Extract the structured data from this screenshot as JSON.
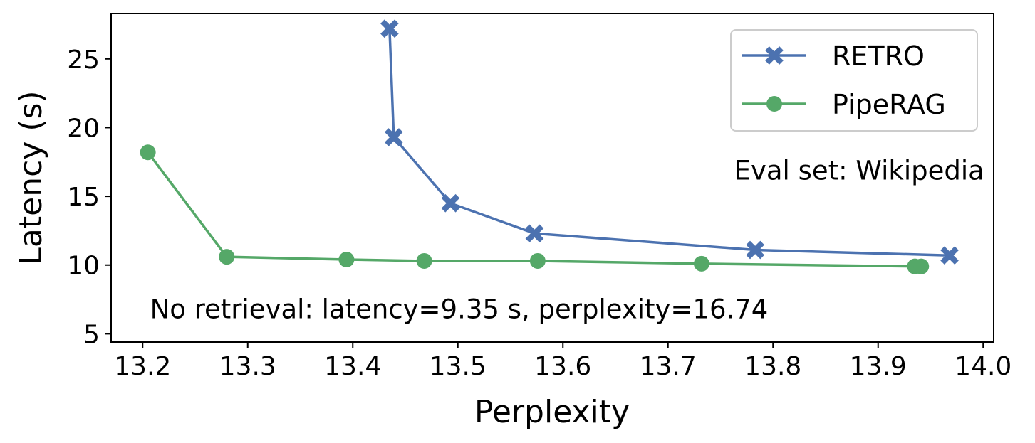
{
  "chart_data": {
    "type": "line",
    "xlabel": "Perplexity",
    "ylabel": "Latency (s)",
    "xlim": [
      13.17,
      14.01
    ],
    "ylim": [
      4.4,
      28.3
    ],
    "xticks": [
      13.2,
      13.3,
      13.4,
      13.5,
      13.6,
      13.7,
      13.8,
      13.9,
      14.0
    ],
    "xtick_labels": [
      "13.2",
      "13.3",
      "13.4",
      "13.5",
      "13.6",
      "13.7",
      "13.8",
      "13.9",
      "14.0"
    ],
    "yticks": [
      5,
      10,
      15,
      20,
      25
    ],
    "ytick_labels": [
      "5",
      "10",
      "15",
      "20",
      "25"
    ],
    "grid": false,
    "legend_position": "top-right",
    "series": [
      {
        "name": "RETRO",
        "color": "#4c72b0",
        "marker": "x",
        "x": [
          13.435,
          13.439,
          13.493,
          13.573,
          13.783,
          13.968
        ],
        "y": [
          27.2,
          19.3,
          14.5,
          12.3,
          11.1,
          10.7
        ]
      },
      {
        "name": "PipeRAG",
        "color": "#55a868",
        "marker": "circle",
        "x": [
          13.205,
          13.28,
          13.394,
          13.468,
          13.576,
          13.732,
          13.935,
          13.941
        ],
        "y": [
          18.2,
          10.6,
          10.4,
          10.3,
          10.3,
          10.1,
          9.9,
          9.9
        ]
      }
    ],
    "annotations": [
      {
        "text": "Eval set: Wikipedia",
        "x": 13.882,
        "y": 16.9
      },
      {
        "text": "No retrieval: latency=9.35 s, perplexity=16.74",
        "x": 13.207,
        "y": 6.8
      }
    ]
  }
}
